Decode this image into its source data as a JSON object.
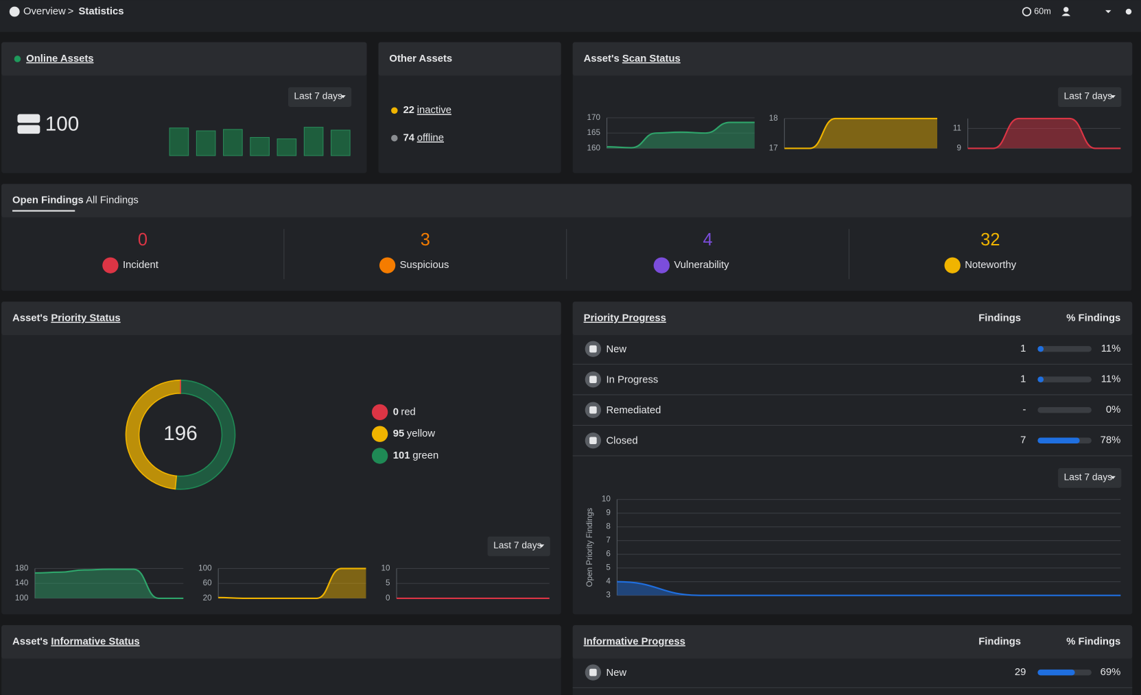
{
  "breadcrumb": [
    "Overview",
    "Statistics"
  ],
  "refresh": "60m",
  "online_assets": {
    "title": "Online Assets",
    "count": 100,
    "range": "Last 7 days",
    "bars": [
      38,
      34,
      36,
      25,
      23,
      39,
      35
    ]
  },
  "other_assets": {
    "title": "Other Assets",
    "items": [
      {
        "count": 22,
        "label": "inactive",
        "color": "#f0b400"
      },
      {
        "count": 74,
        "label": "offline",
        "color": "#8a8d91"
      }
    ]
  },
  "scan_status": {
    "title_prefix": "Asset's",
    "title_link": "Scan Status",
    "range": "Last 7 days",
    "charts": [
      {
        "color": "#2fa56b",
        "ylim": [
          160,
          170
        ],
        "yticks": [
          160,
          165,
          170
        ],
        "values": [
          160.5,
          160.2,
          165,
          165.3,
          165,
          168.5,
          168.5
        ]
      },
      {
        "color": "#f0b400",
        "ylim": [
          17,
          18
        ],
        "yticks": [
          17,
          18
        ],
        "values": [
          17,
          17,
          18,
          18,
          18,
          18,
          18
        ]
      },
      {
        "color": "#dc3545",
        "ylim": [
          9,
          12
        ],
        "yticks": [
          9,
          11
        ],
        "values": [
          9,
          9,
          12,
          12,
          12,
          9,
          9
        ]
      }
    ]
  },
  "findings": {
    "tabs": [
      "Open Findings",
      "All Findings"
    ],
    "items": [
      {
        "count": 0,
        "label": "Incident",
        "color": "#dc3545"
      },
      {
        "count": 3,
        "label": "Suspicious",
        "color": "#f57c00"
      },
      {
        "count": 4,
        "label": "Vulnerability",
        "color": "#7b4ddb"
      },
      {
        "count": 32,
        "label": "Noteworthy",
        "color": "#f0b400"
      }
    ]
  },
  "priority_status": {
    "title_prefix": "Asset's",
    "title_link": "Priority Status",
    "total": 196,
    "range": "Last 7 days",
    "legend": [
      {
        "count": 0,
        "label": "red",
        "color": "#dc3545"
      },
      {
        "count": 95,
        "label": "yellow",
        "color": "#f0b400"
      },
      {
        "count": 101,
        "label": "green",
        "color": "#1f8a55"
      }
    ],
    "charts": [
      {
        "color": "#2fa56b",
        "ylim": [
          100,
          180
        ],
        "yticks": [
          100,
          140,
          180
        ],
        "values": [
          168,
          170,
          176,
          178,
          178,
          100,
          100
        ]
      },
      {
        "color": "#f0b400",
        "ylim": [
          20,
          100
        ],
        "yticks": [
          20,
          60,
          100
        ],
        "values": [
          22,
          20,
          20,
          20,
          20,
          100,
          100
        ]
      },
      {
        "color": "#dc3545",
        "ylim": [
          0,
          10
        ],
        "yticks": [
          0,
          5,
          10
        ],
        "values": [
          0,
          0,
          0,
          0,
          0,
          0,
          0
        ]
      }
    ]
  },
  "priority_progress": {
    "title": "Priority Progress",
    "columns": [
      "Findings",
      "% Findings"
    ],
    "rows": [
      {
        "label": "New",
        "findings": 1,
        "percent": 11,
        "percent_label": "11%"
      },
      {
        "label": "In Progress",
        "findings": 1,
        "percent": 11,
        "percent_label": "11%"
      },
      {
        "label": "Remediated",
        "findings": "-",
        "percent": 0,
        "percent_label": "0%"
      },
      {
        "label": "Closed",
        "findings": 7,
        "percent": 78,
        "percent_label": "78%"
      }
    ],
    "range": "Last 7 days",
    "chart": {
      "ylabel": "Open Priority Findings",
      "color": "#1f6fe0",
      "ylim": [
        3,
        10
      ],
      "yticks": [
        3,
        4,
        5,
        6,
        7,
        8,
        9,
        10
      ],
      "values": [
        4,
        3,
        3,
        3,
        3,
        3,
        3
      ]
    }
  },
  "informative_status": {
    "title_prefix": "Asset's",
    "title_link": "Informative Status"
  },
  "informative_progress": {
    "title": "Informative Progress",
    "columns": [
      "Findings",
      "% Findings"
    ],
    "rows": [
      {
        "label": "New",
        "findings": 29,
        "percent": 69,
        "percent_label": "69%"
      }
    ]
  }
}
